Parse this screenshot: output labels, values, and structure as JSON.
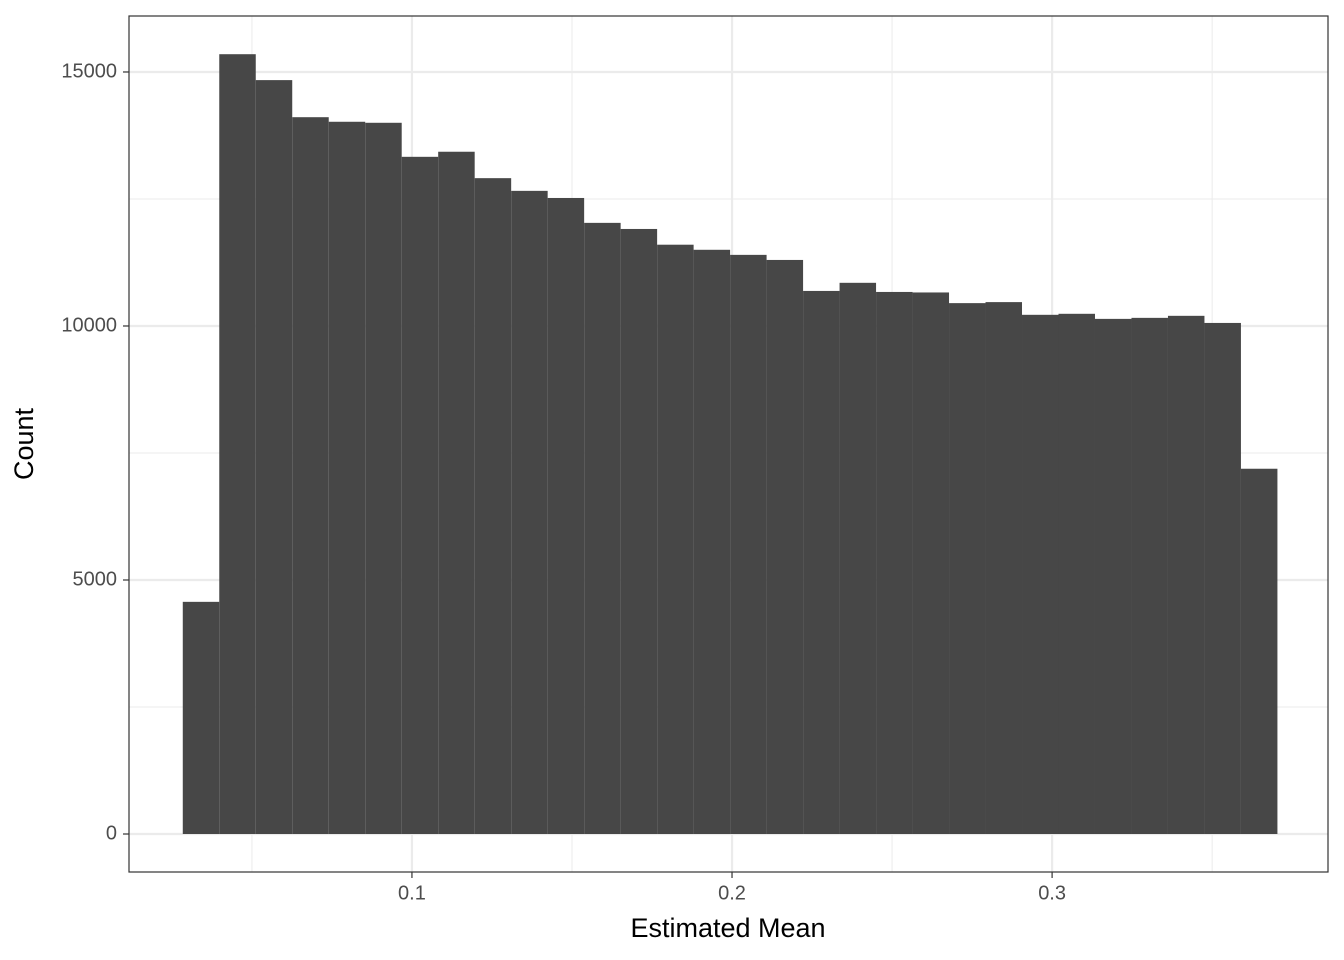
{
  "chart_data": {
    "type": "histogram",
    "x_label": "Estimated Mean",
    "y_label": "Count",
    "bins": [
      0.0284,
      0.0398,
      0.0512,
      0.0626,
      0.074,
      0.0854,
      0.0968,
      0.1082,
      0.1196,
      0.131,
      0.1424,
      0.1538,
      0.1652,
      0.1766,
      0.188,
      0.1994,
      0.2108,
      0.2222,
      0.2336,
      0.245,
      0.2564,
      0.2678,
      0.2792,
      0.2906,
      0.302,
      0.3134,
      0.3248,
      0.3362,
      0.3476,
      0.359,
      0.3704
    ],
    "values": [
      4570,
      15350,
      14840,
      14110,
      14020,
      14000,
      13330,
      13430,
      12910,
      12660,
      12520,
      12030,
      11910,
      11600,
      11500,
      11400,
      11300,
      10690,
      10850,
      10670,
      10660,
      10450,
      10470,
      10220,
      10240,
      10140,
      10160,
      10200,
      10060,
      7190
    ],
    "color": "#474747",
    "xlim": [
      0.0116,
      0.3862
    ],
    "ylim": [
      -748,
      16102
    ],
    "xticks": [
      0.1,
      0.2,
      0.3
    ],
    "yticks": [
      0,
      5000,
      10000,
      15000
    ],
    "xminorticks": [
      0.05,
      0.15,
      0.25,
      0.35
    ],
    "yminorticks": [
      2500,
      7500,
      12500
    ],
    "grid": true
  }
}
